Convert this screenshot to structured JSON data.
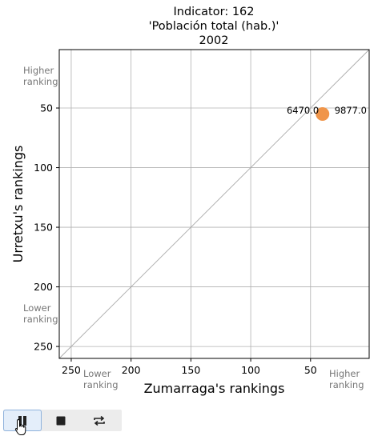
{
  "chart_data": {
    "type": "scatter",
    "title_lines": [
      "Indicator: 162",
      "'Población total (hab.)'",
      "2002"
    ],
    "xlabel": "Zumarraga's rankings",
    "ylabel": "Urretxu's rankings",
    "xlim": [
      260,
      1
    ],
    "ylim": [
      260,
      1
    ],
    "x_ticks": [
      250,
      200,
      150,
      100,
      50
    ],
    "y_ticks": [
      50,
      100,
      150,
      200,
      250
    ],
    "grid": true,
    "reference_line": "diagonal",
    "points": [
      {
        "x": 40,
        "y": 55,
        "color": "#f0954a",
        "left_label": "6470.0",
        "right_label": "9877.0"
      }
    ],
    "hints": {
      "y_top": [
        "Higher",
        "ranking"
      ],
      "y_bottom": [
        "Lower",
        "ranking"
      ],
      "x_left": [
        "Lower",
        "ranking"
      ],
      "x_right": [
        "Higher",
        "ranking"
      ]
    }
  },
  "toolbar": {
    "buttons": [
      {
        "name": "pause-button",
        "icon": "pause-icon",
        "active": true
      },
      {
        "name": "stop-button",
        "icon": "stop-icon",
        "active": false
      },
      {
        "name": "repeat-button",
        "icon": "repeat-icon",
        "active": false
      }
    ]
  }
}
